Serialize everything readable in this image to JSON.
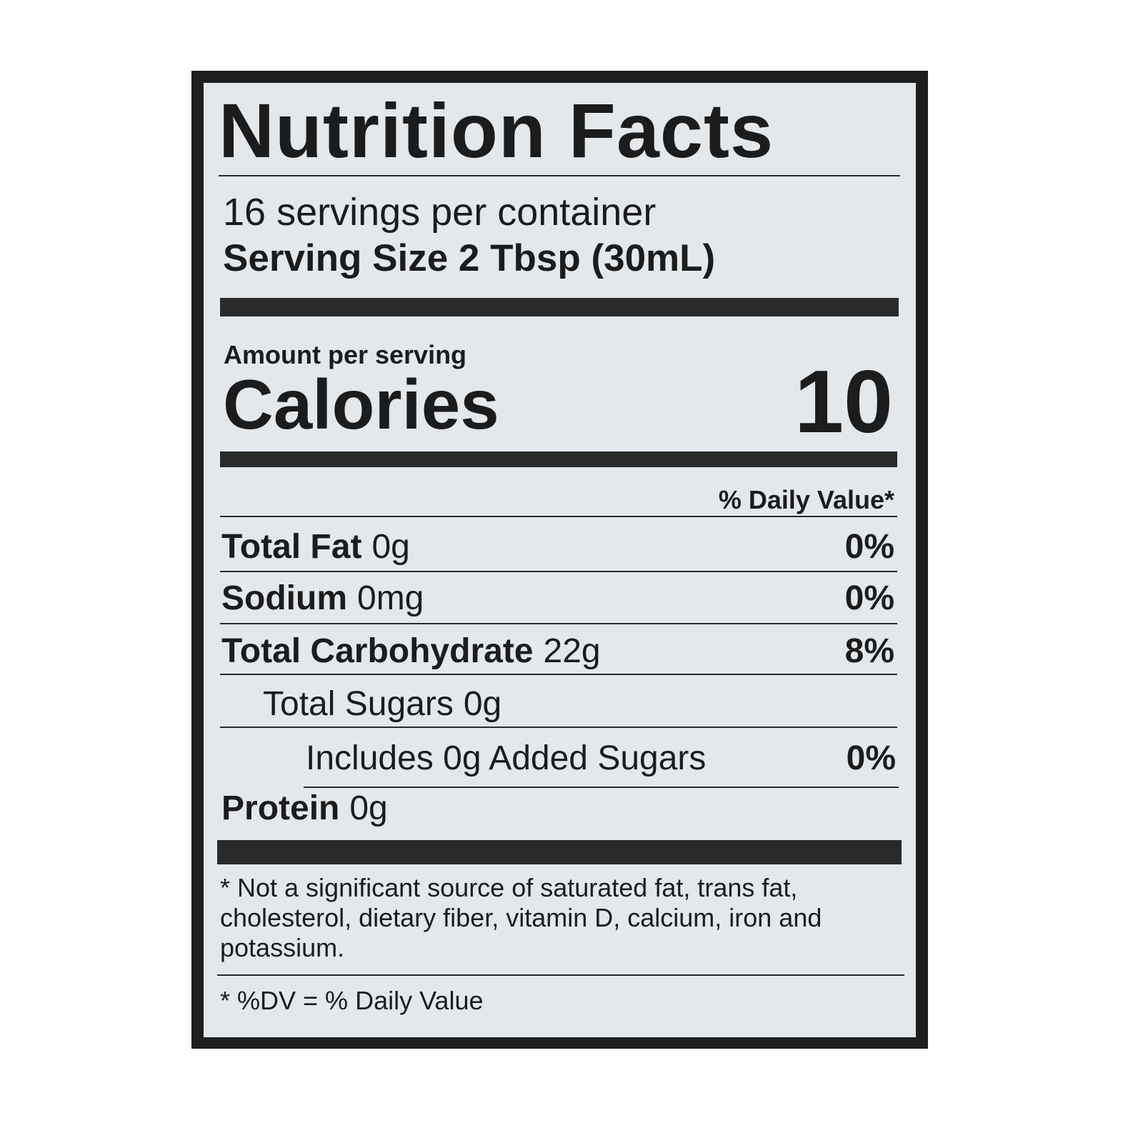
{
  "title": "Nutrition Facts",
  "servings": "16 servings per container",
  "serving_size": {
    "label": "Serving Size",
    "value": "2 Tbsp (30mL)"
  },
  "amount_per_serving": "Amount per serving",
  "calories": {
    "label": "Calories",
    "value": "10"
  },
  "dv_header": "% Daily Value*",
  "nutrients": [
    {
      "name": "Total Fat",
      "amount": "0g",
      "dv": "0%"
    },
    {
      "name": "Sodium",
      "amount": "0mg",
      "dv": "0%"
    },
    {
      "name": "Total Carbohydrate",
      "amount": "22g",
      "dv": "8%"
    },
    {
      "name": "Total Sugars",
      "amount": "0g"
    },
    {
      "name": "Includes 0g Added Sugars",
      "dv": "0%"
    },
    {
      "name": "Protein",
      "amount": "0g"
    }
  ],
  "footnotes": [
    "* Not a significant source of saturated fat, trans fat, cholesterol, dietary fiber, vitamin D, calcium, iron and potassium.",
    "* %DV = % Daily Value"
  ]
}
